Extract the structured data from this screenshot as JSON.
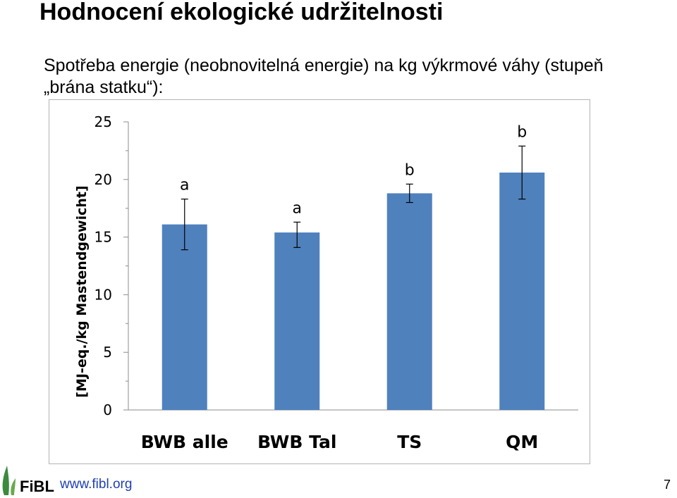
{
  "slide": {
    "title": "Hodnocení ekologické udržitelnosti",
    "subtitle_line1": "Spotřeba energie (neobnovitelná energie) na kg výkrmové váhy (stupeň",
    "subtitle_line2": "„brána statku“):",
    "footer_logo_text": "FiBL",
    "footer_link": "www.fibl.org",
    "page_number": "7"
  },
  "colors": {
    "bar": "#4f81bd",
    "logo_green": "#3b8a3e"
  },
  "chart_data": {
    "type": "bar",
    "title": "",
    "xlabel": "",
    "ylabel": "[MJ-eq./kg Mastendgewicht]",
    "ylim": [
      0,
      25
    ],
    "yticks": [
      "0",
      "5",
      "10",
      "15",
      "20",
      "25"
    ],
    "grid": false,
    "categories": [
      "BWB alle",
      "BWB Tal",
      "TS",
      "QM"
    ],
    "values": [
      16.1,
      15.4,
      18.8,
      20.6
    ],
    "error_low": [
      13.9,
      14.1,
      18.0,
      18.3
    ],
    "error_high": [
      18.3,
      16.3,
      19.6,
      22.9
    ],
    "significance_letters": [
      "a",
      "a",
      "b",
      "b"
    ]
  }
}
